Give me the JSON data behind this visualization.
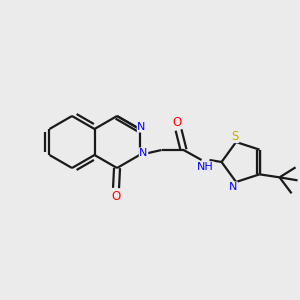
{
  "bg_color": "#ebebeb",
  "bond_color": "#1a1a1a",
  "atom_colors": {
    "N": "#0000ff",
    "O": "#ff0000",
    "S": "#ccaa00",
    "H": "#000000",
    "C": "#1a1a1a"
  },
  "figsize": [
    3.0,
    3.0
  ],
  "dpi": 100
}
